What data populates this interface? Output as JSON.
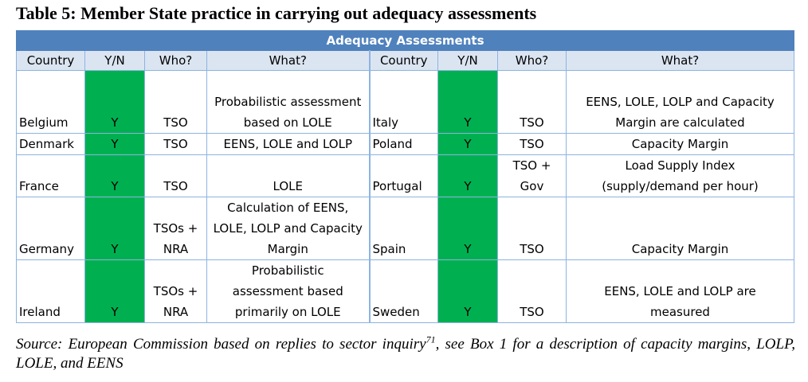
{
  "title": "Table 5: Member State practice in carrying out adequacy assessments",
  "banner": "Adequacy Assessments",
  "headers": {
    "left": [
      "Country",
      "Y/N",
      "Who?",
      "What?"
    ],
    "right": [
      "Country",
      "Y/N",
      "Who?",
      "What?"
    ]
  },
  "rows": [
    {
      "left": {
        "country": "Belgium",
        "yn": "Y",
        "who": "TSO",
        "what": "Probabilistic assessment based on LOLE"
      },
      "right": {
        "country": "Italy",
        "yn": "Y",
        "who": "TSO",
        "what": "EENS, LOLE, LOLP and Capacity Margin are calculated"
      }
    },
    {
      "left": {
        "country": "Denmark",
        "yn": "Y",
        "who": "TSO",
        "what": "EENS, LOLE and LOLP"
      },
      "right": {
        "country": "Poland",
        "yn": "Y",
        "who": "TSO",
        "what": "Capacity Margin"
      }
    },
    {
      "left": {
        "country": "France",
        "yn": "Y",
        "who": "TSO",
        "what": "LOLE"
      },
      "right": {
        "country": "Portugal",
        "yn": "Y",
        "who": "TSO + Gov",
        "what": "Load Supply Index (supply/demand per hour)"
      }
    },
    {
      "left": {
        "country": "Germany",
        "yn": "Y",
        "who": "TSOs + NRA",
        "what": "Calculation of EENS, LOLE, LOLP and Capacity Margin"
      },
      "right": {
        "country": "Spain",
        "yn": "Y",
        "who": "TSO",
        "what": "Capacity Margin"
      }
    },
    {
      "left": {
        "country": "Ireland",
        "yn": "Y",
        "who": "TSOs + NRA",
        "what": "Probabilistic assessment based primarily on LOLE"
      },
      "right": {
        "country": "Sweden",
        "yn": "Y",
        "who": "TSO",
        "what": "EENS, LOLE and LOLP are measured"
      }
    }
  ],
  "source": {
    "before": "Source: European Commission based on replies to sector inquiry",
    "footnote": "71",
    "after": ", see Box 1 for a description of capacity margins, LOLP, LOLE, and EENS"
  },
  "colors": {
    "banner": "#4f81bd",
    "header_fill": "#dbe5f1",
    "grid": "#8db3e2",
    "yes_fill": "#00b050"
  }
}
